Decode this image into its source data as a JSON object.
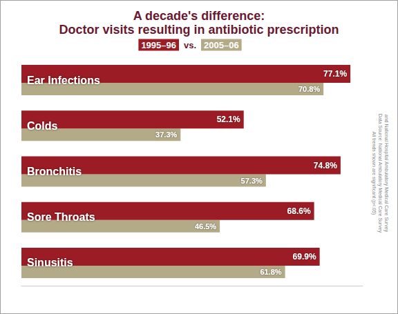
{
  "chart_data": {
    "type": "bar",
    "title": "A decade's difference:",
    "subtitle": "Doctor visits resulting in antibiotic prescription",
    "orientation": "horizontal",
    "categories": [
      "Ear Infections",
      "Colds",
      "Bronchitis",
      "Sore Throats",
      "Sinusitis"
    ],
    "series": [
      {
        "name": "1995–96",
        "color": "#9b1c24",
        "values": [
          77.1,
          52.1,
          74.8,
          68.6,
          69.9
        ],
        "value_labels": [
          "77.1%",
          "52.1%",
          "74.8%",
          "68.6%",
          "69.9%"
        ]
      },
      {
        "name": "2005–06",
        "color": "#b3aa88",
        "values": [
          70.8,
          37.3,
          57.3,
          46.5,
          61.8
        ],
        "value_labels": [
          "70.8%",
          "37.3%",
          "57.3%",
          "46.5%",
          "61.8%"
        ]
      }
    ],
    "xlim": [
      0,
      80
    ],
    "grid": false,
    "data_labels": true,
    "tick_labels": "y",
    "annotations": [
      "vs.",
      "All trends shown are significant (p<.05)",
      "Data Source: National Ambulatory Medical Care Survey",
      "and National Hospital Ambulatory Medical Care Survey"
    ]
  }
}
